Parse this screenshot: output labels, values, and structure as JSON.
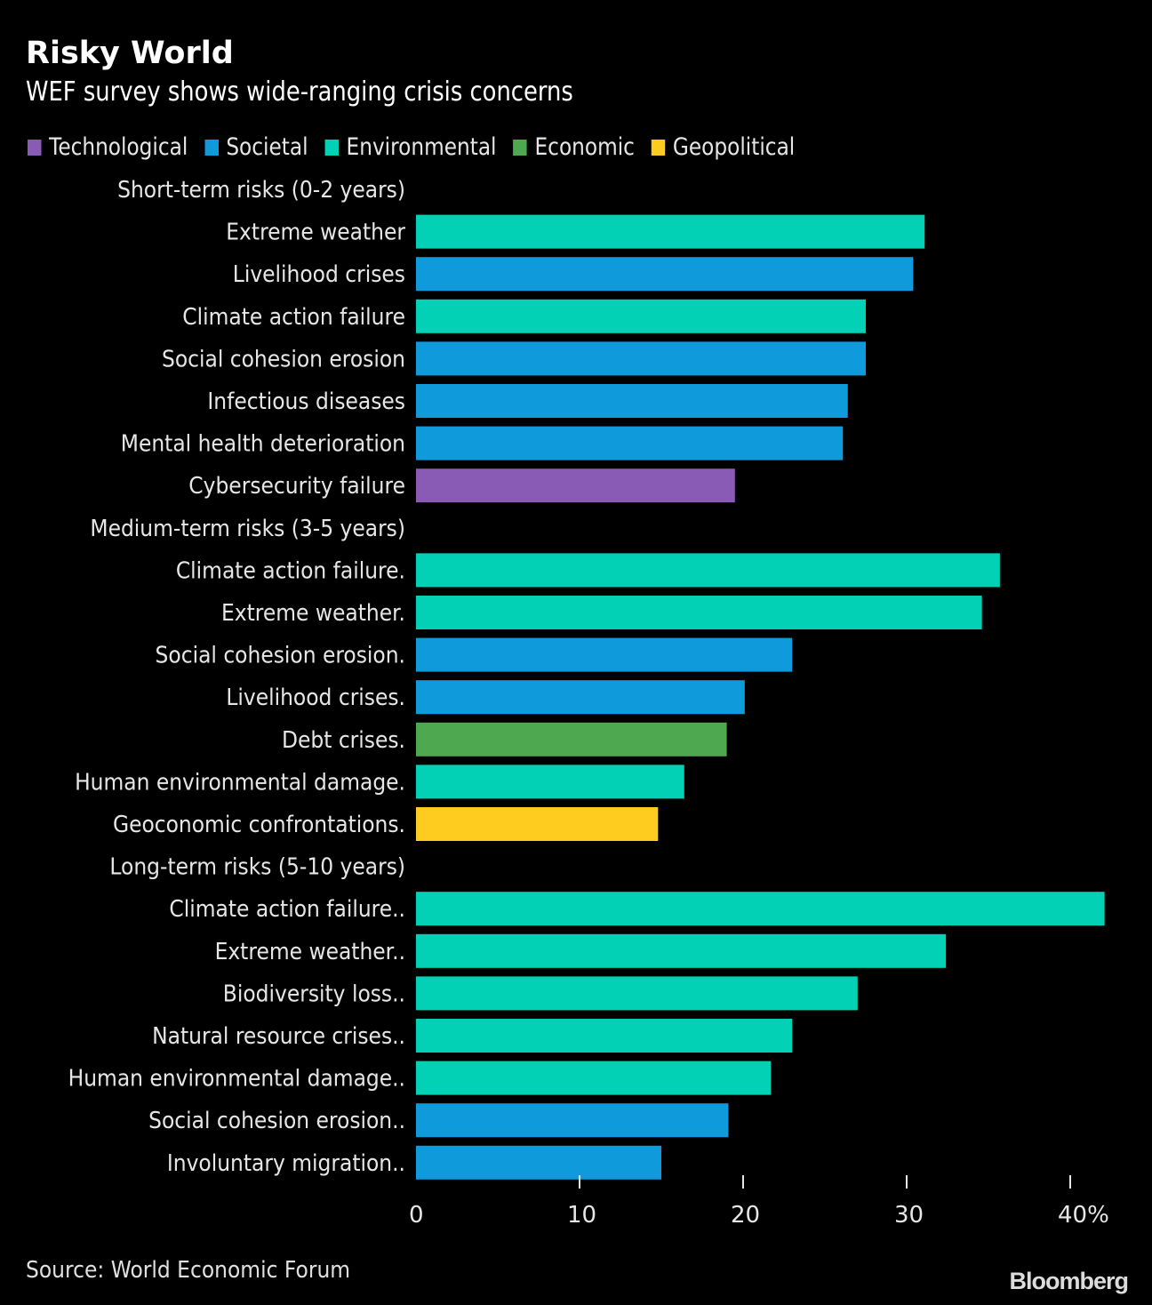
{
  "chart_data": {
    "type": "bar",
    "orientation": "horizontal",
    "title": "Risky World",
    "subtitle": "WEF survey shows wide-ranging crisis concerns",
    "xlabel": "",
    "ylabel": "",
    "xlim": [
      0,
      42
    ],
    "x_ticks": [
      0,
      10,
      20,
      30,
      40
    ],
    "x_tick_labels": [
      "0",
      "10",
      "20",
      "30",
      "40%"
    ],
    "grid": false,
    "legend_position": "top-left",
    "legend": [
      {
        "name": "Technological",
        "color": "#8A5BB4"
      },
      {
        "name": "Societal",
        "color": "#0F9BDB"
      },
      {
        "name": "Environmental",
        "color": "#03D1B5"
      },
      {
        "name": "Economic",
        "color": "#4EA84F"
      },
      {
        "name": "Geopolitical",
        "color": "#FECB1F"
      }
    ],
    "groups": [
      {
        "header": "Short-term risks (0-2 years)",
        "items": [
          {
            "label": "Extreme weather",
            "value": 31.1,
            "category": "Environmental"
          },
          {
            "label": "Livelihood crises",
            "value": 30.4,
            "category": "Societal"
          },
          {
            "label": "Climate action failure",
            "value": 27.5,
            "category": "Environmental"
          },
          {
            "label": "Social cohesion erosion",
            "value": 27.5,
            "category": "Societal"
          },
          {
            "label": "Infectious diseases",
            "value": 26.4,
            "category": "Societal"
          },
          {
            "label": "Mental health deterioration",
            "value": 26.1,
            "category": "Societal"
          },
          {
            "label": "Cybersecurity failure",
            "value": 19.5,
            "category": "Technological"
          }
        ]
      },
      {
        "header": "Medium-term risks (3-5 years)",
        "items": [
          {
            "label": "Climate action failure.",
            "value": 35.7,
            "category": "Environmental"
          },
          {
            "label": "Extreme weather.",
            "value": 34.6,
            "category": "Environmental"
          },
          {
            "label": "Social cohesion erosion.",
            "value": 23.0,
            "category": "Societal"
          },
          {
            "label": "Livelihood crises.",
            "value": 20.1,
            "category": "Societal"
          },
          {
            "label": "Debt crises.",
            "value": 19.0,
            "category": "Economic"
          },
          {
            "label": "Human environmental damage.",
            "value": 16.4,
            "category": "Environmental"
          },
          {
            "label": "Geoconomic confrontations.",
            "value": 14.8,
            "category": "Geopolitical"
          }
        ]
      },
      {
        "header": "Long-term risks (5-10 years)",
        "items": [
          {
            "label": "Climate action failure..",
            "value": 42.1,
            "category": "Environmental"
          },
          {
            "label": "Extreme weather..",
            "value": 32.4,
            "category": "Environmental"
          },
          {
            "label": "Biodiversity loss..",
            "value": 27.0,
            "category": "Environmental"
          },
          {
            "label": "Natural resource crises..",
            "value": 23.0,
            "category": "Environmental"
          },
          {
            "label": "Human environmental damage..",
            "value": 21.7,
            "category": "Environmental"
          },
          {
            "label": "Social cohesion erosion..",
            "value": 19.1,
            "category": "Societal"
          },
          {
            "label": "Involuntary migration..",
            "value": 15.0,
            "category": "Societal"
          }
        ]
      }
    ]
  },
  "footer": {
    "source": "Source: World Economic Forum",
    "brand": "Bloomberg"
  }
}
